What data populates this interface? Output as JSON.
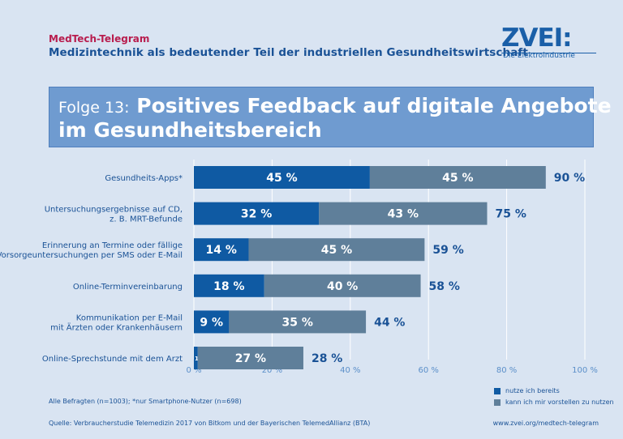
{
  "header": {
    "brand": "MedTech-Telegram",
    "subtitle": "Medizintechnik als bedeutender Teil der industriellen Gesundheitswirtschaft"
  },
  "logo": {
    "name": "ZVEI:",
    "tagline": "Die Elektroindustrie"
  },
  "banner": {
    "prefix": "Folge 13:",
    "title_line1": "Positives Feedback auf digitale Angebote",
    "title_line2": "im Gesundheitsbereich"
  },
  "colors": {
    "background": "#d9e4f2",
    "banner": "#6f9bd0",
    "series_already": "#0f5aa3",
    "series_could": "#5f7f9a",
    "text": "#1a5296",
    "grid": "#ffffff"
  },
  "chart_data": {
    "type": "bar",
    "orientation": "horizontal",
    "stacked": true,
    "categories": [
      [
        "Gesundheits-Apps*"
      ],
      [
        "Untersuchungsergebnisse auf CD,",
        "z. B. MRT-Befunde"
      ],
      [
        "Erinnerung an Termine oder fällige",
        "Vorsorgeuntersuchungen per SMS oder E-Mail"
      ],
      [
        "Online-Terminvereinbarung"
      ],
      [
        "Kommunikation per E-Mail",
        "mit Ärzten oder Krankenhäusern"
      ],
      [
        "Online-Sprechstunde mit dem Arzt"
      ]
    ],
    "series": [
      {
        "name": "nutze ich bereits",
        "values": [
          45,
          32,
          14,
          18,
          9,
          1
        ]
      },
      {
        "name": "kann ich mir vorstellen zu nutzen",
        "values": [
          45,
          43,
          45,
          40,
          35,
          27
        ]
      }
    ],
    "segment_labels": [
      [
        "45 %",
        "32 %",
        "14 %",
        "18 %",
        "9 %",
        "1%"
      ],
      [
        "45 %",
        "43 %",
        "45 %",
        "40 %",
        "35 %",
        "27 %"
      ]
    ],
    "totals": [
      90,
      75,
      59,
      58,
      44,
      28
    ],
    "total_labels": [
      "90 %",
      "75 %",
      "59 %",
      "58 %",
      "44 %",
      "28 %"
    ],
    "xlim": [
      0,
      100
    ],
    "xticks": [
      0,
      20,
      40,
      60,
      80,
      100
    ],
    "xtick_labels": [
      "0 %",
      "20 %",
      "40 %",
      "60 %",
      "80 %",
      "100 %"
    ],
    "grid": true,
    "legend_position": "bottom-right"
  },
  "footer": {
    "note": "Alle Befragten (n=1003); *nur Smartphone-Nutzer (n=698)",
    "source": "Quelle: Verbraucherstudie Telemedizin 2017 von Bitkom und der Bayerischen TelemedAllianz (BTA)",
    "url": "www.zvei.org/medtech-telegram"
  }
}
